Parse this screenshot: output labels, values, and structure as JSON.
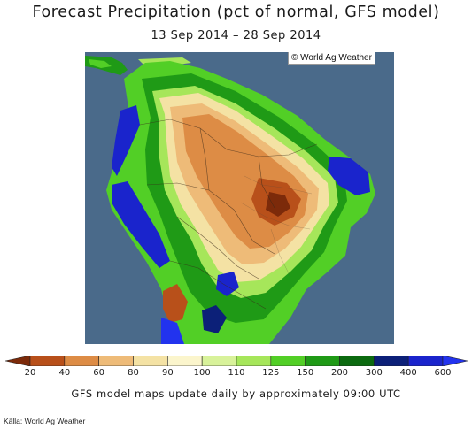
{
  "header": {
    "title": "Forecast Precipitation (pct of normal, GFS model)",
    "date_range": "13 Sep 2014 – 28 Sep 2014"
  },
  "map": {
    "credit": "© World Ag Weather",
    "ocean_color": "#4a6a8a"
  },
  "legend": {
    "labels": [
      "20",
      "40",
      "60",
      "80",
      "90",
      "100",
      "110",
      "125",
      "150",
      "200",
      "300",
      "400",
      "600"
    ],
    "colors": [
      "#7c2a0a",
      "#b8501a",
      "#dd8c45",
      "#eebb78",
      "#f4e2a4",
      "#fbf5cc",
      "#d8f29a",
      "#a6e65a",
      "#52cf26",
      "#1f9a16",
      "#0c6a10",
      "#0c2078",
      "#1a24cc",
      "#2233ee"
    ]
  },
  "footer": {
    "note": "GFS model maps update daily by approximately 09:00 UTC",
    "source": "Källa: World Ag Weather"
  }
}
